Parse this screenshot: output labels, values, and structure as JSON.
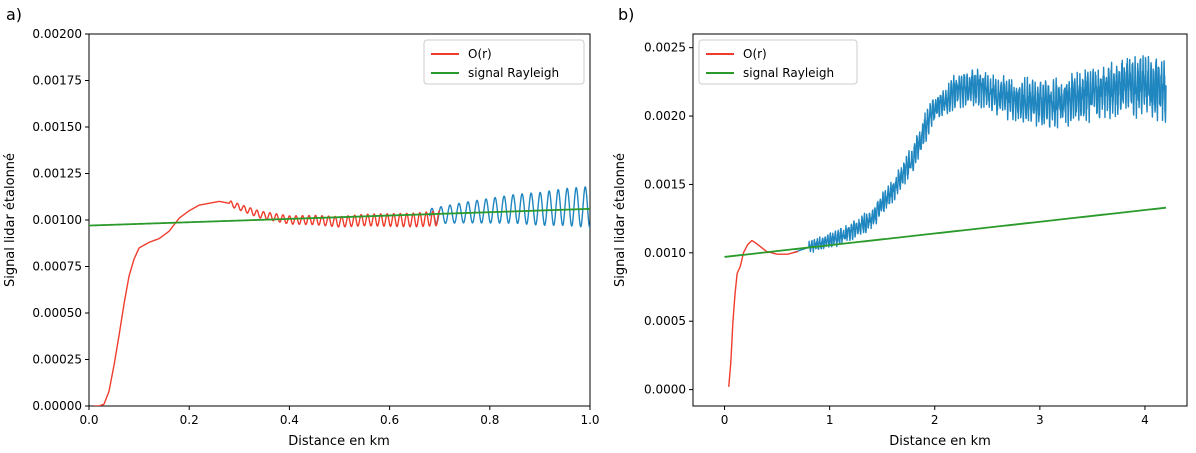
{
  "colors": {
    "or": "#f03c2c",
    "rayleigh": "#2a9a2a",
    "signal": "#1f86c0"
  },
  "chart_data": [
    {
      "panel_label": "a)",
      "type": "line",
      "xlabel": "Distance en km",
      "ylabel": "Signal lidar étalonné",
      "xlim": [
        0.0,
        1.0
      ],
      "ylim": [
        0.0,
        0.002
      ],
      "xticks": [
        "0.0",
        "0.2",
        "0.4",
        "0.6",
        "0.8",
        "1.0"
      ],
      "yticks": [
        "0.00000",
        "0.00025",
        "0.00050",
        "0.00075",
        "0.00100",
        "0.00125",
        "0.00150",
        "0.00175",
        "0.00200"
      ],
      "legend_position": "top-right",
      "legend": [
        "O(r)",
        "signal Rayleigh"
      ],
      "series": [
        {
          "name": "O(r)",
          "color": "#f03c2c",
          "x": [
            0.01,
            0.02,
            0.03,
            0.04,
            0.05,
            0.06,
            0.07,
            0.08,
            0.09,
            0.1,
            0.12,
            0.14,
            0.16,
            0.18,
            0.2,
            0.22,
            0.24,
            0.26,
            0.28,
            0.3,
            0.32,
            0.34,
            0.36,
            0.38,
            0.4,
            0.45,
            0.5,
            0.55,
            0.6,
            0.65,
            0.7
          ],
          "y": [
            0.0,
            0.0,
            1e-05,
            8e-05,
            0.00022,
            0.00038,
            0.00055,
            0.0007,
            0.00079,
            0.00085,
            0.00088,
            0.0009,
            0.00094,
            0.00101,
            0.00105,
            0.00108,
            0.00109,
            0.0011,
            0.00109,
            0.00107,
            0.00105,
            0.00103,
            0.00102,
            0.00101,
            0.001,
            0.001,
            0.00099,
            0.001,
            0.001,
            0.001,
            0.00101
          ],
          "oscillation": {
            "start": 0.28,
            "amplitude": 1.5e-05,
            "amplitude_end": 4e-05,
            "period": 0.013
          }
        },
        {
          "name": "signal",
          "color": "#1f86c0",
          "x": [
            0.68,
            0.75,
            0.8,
            0.85,
            0.9,
            0.95,
            1.0
          ],
          "y": [
            0.00102,
            0.00104,
            0.00105,
            0.00106,
            0.00106,
            0.00107,
            0.00107
          ],
          "oscillation": {
            "start": 0.68,
            "amplitude": 4e-05,
            "amplitude_end": 0.00011,
            "period": 0.018
          }
        },
        {
          "name": "signal Rayleigh",
          "color": "#2a9a2a",
          "x": [
            0.0,
            1.0
          ],
          "y": [
            0.00097,
            0.00106
          ]
        }
      ]
    },
    {
      "panel_label": "b)",
      "type": "line",
      "xlabel": "Distance en km",
      "ylabel": "Signal lidar étalonné",
      "xlim": [
        -0.3,
        4.4
      ],
      "ylim": [
        -0.00012,
        0.0026
      ],
      "xticks": [
        "0",
        "1",
        "2",
        "3",
        "4"
      ],
      "yticks": [
        "0.0000",
        "0.0005",
        "0.0010",
        "0.0015",
        "0.0020",
        "0.0025"
      ],
      "legend_position": "top-left",
      "legend": [
        "O(r)",
        "signal Rayleigh"
      ],
      "series": [
        {
          "name": "O(r)",
          "color": "#f03c2c",
          "x": [
            0.04,
            0.06,
            0.08,
            0.1,
            0.12,
            0.15,
            0.18,
            0.22,
            0.26,
            0.3,
            0.35,
            0.4,
            0.45,
            0.5,
            0.55,
            0.6,
            0.65,
            0.7
          ],
          "y": [
            2e-05,
            0.0002,
            0.0005,
            0.0007,
            0.00085,
            0.0009,
            0.001,
            0.00106,
            0.00109,
            0.00107,
            0.00104,
            0.00101,
            0.001,
            0.00099,
            0.00099,
            0.00099,
            0.001,
            0.00101
          ]
        },
        {
          "name": "signal",
          "color": "#1f86c0",
          "x": [
            0.65,
            0.8,
            1.0,
            1.2,
            1.4,
            1.6,
            1.8,
            1.9,
            2.0,
            2.2,
            2.4,
            2.6,
            2.8,
            3.0,
            3.2,
            3.4,
            3.6,
            3.8,
            4.0,
            4.2
          ],
          "y": [
            0.001,
            0.00104,
            0.00109,
            0.00115,
            0.00125,
            0.00145,
            0.0017,
            0.0019,
            0.00205,
            0.00218,
            0.00222,
            0.00215,
            0.00212,
            0.0021,
            0.0021,
            0.00215,
            0.00218,
            0.00222,
            0.00222,
            0.0022
          ],
          "oscillation": {
            "start": 0.8,
            "amplitude": 3e-05,
            "amplitude_end": 0.00016,
            "period": 0.025
          }
        },
        {
          "name": "signal Rayleigh",
          "color": "#2a9a2a",
          "x": [
            0.0,
            4.2
          ],
          "y": [
            0.00097,
            0.00133
          ]
        }
      ]
    }
  ]
}
